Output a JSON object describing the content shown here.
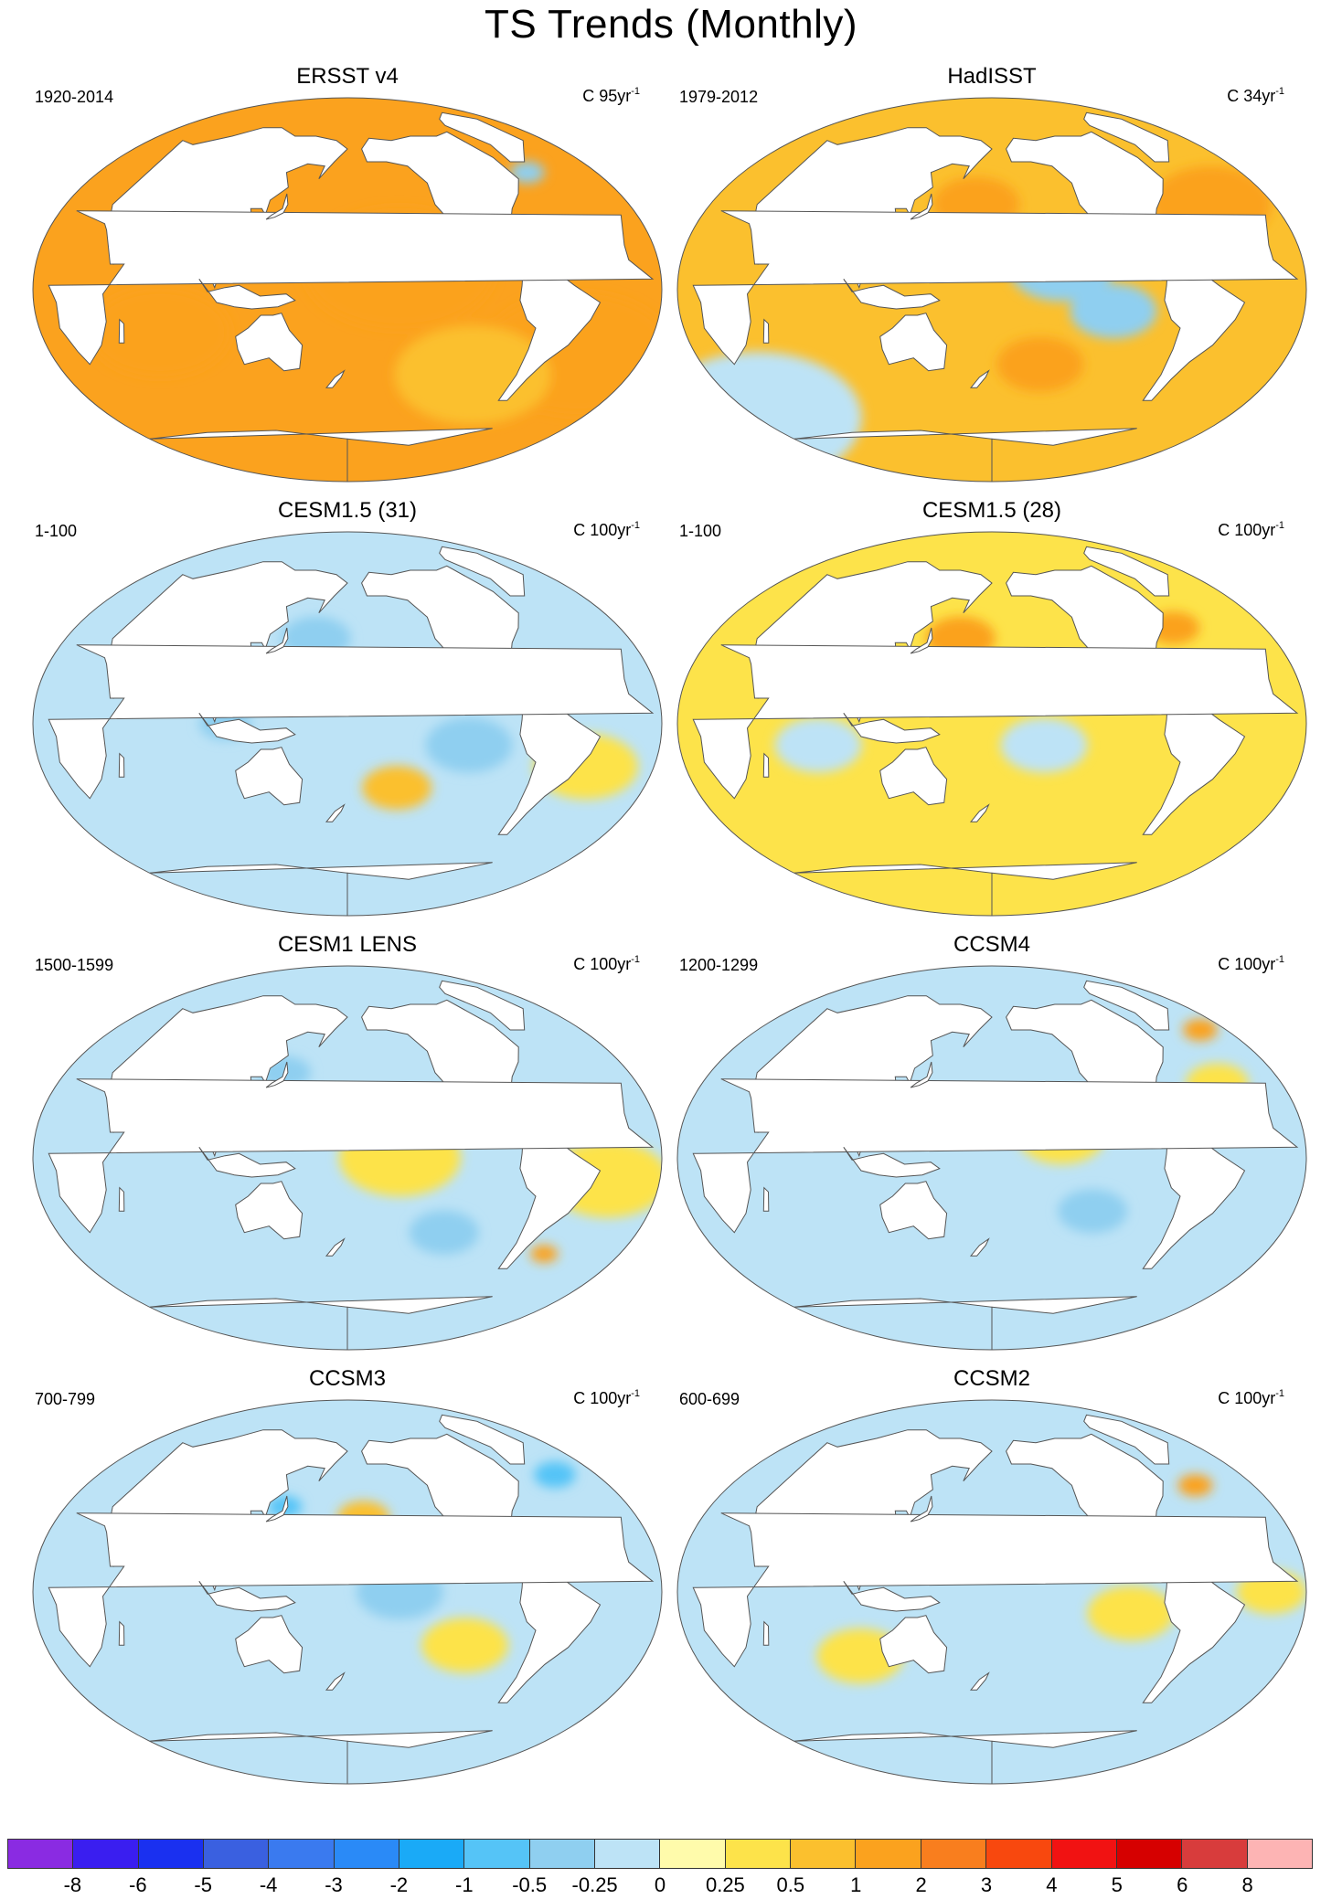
{
  "title": "TS Trends (Monthly)",
  "panels": [
    {
      "title": "ERSST v4",
      "range": "1920-2014",
      "units_prefix": "C 95yr",
      "units_exp": "-1",
      "blobs": [
        {
          "lon": -150,
          "lat": 10,
          "r": 55,
          "v": 1.0
        },
        {
          "lon": -40,
          "lat": -30,
          "r": 55,
          "v": 1.0
        },
        {
          "lon": 70,
          "lat": -20,
          "r": 40,
          "v": 1.0
        },
        {
          "lon": -100,
          "lat": -40,
          "r": 45,
          "v": 0.5
        },
        {
          "lon": -50,
          "lat": 55,
          "r": 10,
          "v": -0.5
        }
      ],
      "base": 1.0
    },
    {
      "title": "HadISST",
      "range": "1979-2012",
      "units_prefix": "C 34yr",
      "units_exp": "-1",
      "blobs": [
        {
          "lon": -140,
          "lat": 10,
          "r": 30,
          "v": -0.5
        },
        {
          "lon": -110,
          "lat": -10,
          "r": 25,
          "v": -0.5
        },
        {
          "lon": 170,
          "lat": 40,
          "r": 25,
          "v": 1.0
        },
        {
          "lon": -150,
          "lat": -35,
          "r": 25,
          "v": 1.0
        },
        {
          "lon": -40,
          "lat": 40,
          "r": 35,
          "v": 1.0
        },
        {
          "lon": 0,
          "lat": -60,
          "r": 60,
          "v": -0.25
        }
      ],
      "base": 0.5
    },
    {
      "title": "CESM1.5 (31)",
      "range": "1-100",
      "units_prefix": "C 100yr",
      "units_exp": "-1",
      "blobs": [
        {
          "lon": -110,
          "lat": -10,
          "r": 25,
          "v": -0.5
        },
        {
          "lon": 160,
          "lat": 40,
          "r": 20,
          "v": -0.5
        },
        {
          "lon": -150,
          "lat": -30,
          "r": 20,
          "v": 0.5
        },
        {
          "lon": 110,
          "lat": 0,
          "r": 15,
          "v": -0.5
        },
        {
          "lon": -40,
          "lat": -20,
          "r": 30,
          "v": 0.25
        }
      ],
      "base": -0.25
    },
    {
      "title": "CESM1.5 (28)",
      "range": "1-100",
      "units_prefix": "C 100yr",
      "units_exp": "-1",
      "blobs": [
        {
          "lon": 160,
          "lat": 40,
          "r": 20,
          "v": 1.0
        },
        {
          "lon": -60,
          "lat": 45,
          "r": 15,
          "v": 1.0
        },
        {
          "lon": -150,
          "lat": -10,
          "r": 25,
          "v": -0.25
        },
        {
          "lon": 80,
          "lat": -10,
          "r": 25,
          "v": -0.25
        }
      ],
      "base": 0.25
    },
    {
      "title": "CESM1 LENS",
      "range": "1500-1599",
      "units_prefix": "C 100yr",
      "units_exp": "-1",
      "blobs": [
        {
          "lon": -150,
          "lat": 0,
          "r": 35,
          "v": 0.25
        },
        {
          "lon": -30,
          "lat": -10,
          "r": 35,
          "v": 0.25
        },
        {
          "lon": 140,
          "lat": 40,
          "r": 15,
          "v": -0.5
        },
        {
          "lon": -120,
          "lat": -35,
          "r": 20,
          "v": -0.5
        },
        {
          "lon": -50,
          "lat": -45,
          "r": 8,
          "v": 1.0
        }
      ],
      "base": -0.25
    },
    {
      "title": "CCSM4",
      "range": "1200-1299",
      "units_prefix": "C 100yr",
      "units_exp": "-1",
      "blobs": [
        {
          "lon": -140,
          "lat": 10,
          "r": 25,
          "v": 0.25
        },
        {
          "lon": -40,
          "lat": 35,
          "r": 18,
          "v": 0.25
        },
        {
          "lon": -120,
          "lat": -25,
          "r": 20,
          "v": -0.5
        },
        {
          "lon": -20,
          "lat": 60,
          "r": 10,
          "v": 1.0
        }
      ],
      "base": -0.25
    },
    {
      "title": "CCSM3",
      "range": "700-799",
      "units_prefix": "C 100yr",
      "units_exp": "-1",
      "blobs": [
        {
          "lon": -170,
          "lat": 35,
          "r": 15,
          "v": 0.5
        },
        {
          "lon": -150,
          "lat": 0,
          "r": 25,
          "v": -0.5
        },
        {
          "lon": -110,
          "lat": -25,
          "r": 25,
          "v": 0.25
        },
        {
          "lon": 140,
          "lat": 40,
          "r": 10,
          "v": -1.0
        },
        {
          "lon": -30,
          "lat": 55,
          "r": 12,
          "v": -1.0
        }
      ],
      "base": -0.25
    },
    {
      "title": "CCSM2",
      "range": "600-699",
      "units_prefix": "C 100yr",
      "units_exp": "-1",
      "blobs": [
        {
          "lon": -100,
          "lat": -10,
          "r": 25,
          "v": 0.25
        },
        {
          "lon": -20,
          "lat": 0,
          "r": 20,
          "v": 0.25
        },
        {
          "lon": 100,
          "lat": -30,
          "r": 25,
          "v": 0.25
        },
        {
          "lon": -40,
          "lat": 50,
          "r": 10,
          "v": 1.0
        }
      ],
      "base": -0.25
    }
  ],
  "colorbar": {
    "colors": [
      "#8a2be2",
      "#3a1ef0",
      "#1a30f0",
      "#3a60e0",
      "#3a7aef",
      "#2a8af7",
      "#1aaaf7",
      "#55c4f7",
      "#8fcff0",
      "#bde3f6",
      "#fffbab",
      "#fde34a",
      "#fbc02e",
      "#fba21e",
      "#f97e1e",
      "#f8480e",
      "#f11212",
      "#d60000",
      "#d83c3c",
      "#fdb4b4"
    ],
    "labels": [
      "-8",
      "-6",
      "-5",
      "-4",
      "-3",
      "-2",
      "-1",
      "-0.5",
      "-0.25",
      "0",
      "0.25",
      "0.5",
      "1",
      "2",
      "3",
      "4",
      "5",
      "6",
      "8"
    ]
  }
}
